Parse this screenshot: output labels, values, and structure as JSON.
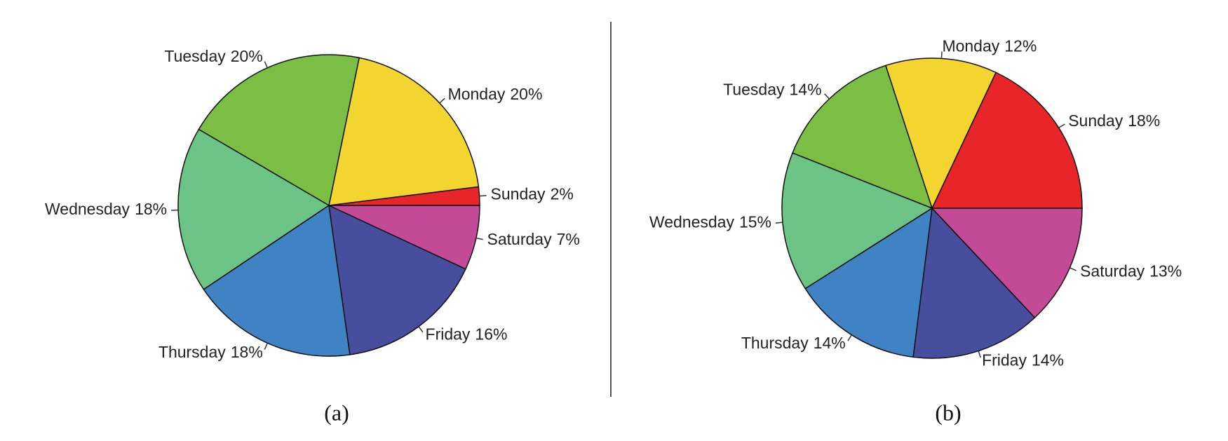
{
  "chart_data": [
    {
      "type": "pie",
      "caption": "(a)",
      "categories": [
        "Sunday",
        "Monday",
        "Tuesday",
        "Wednesday",
        "Thursday",
        "Friday",
        "Saturday"
      ],
      "values": [
        2,
        20,
        20,
        18,
        18,
        16,
        7
      ],
      "value_labels": [
        "2%",
        "20%",
        "20%",
        "18%",
        "18%",
        "16%",
        "7%"
      ],
      "colors": [
        "#e8262a",
        "#f2d62f",
        "#7abf43",
        "#6cc386",
        "#3f83c4",
        "#484e9e",
        "#c24a97"
      ]
    },
    {
      "type": "pie",
      "caption": "(b)",
      "categories": [
        "Sunday",
        "Monday",
        "Tuesday",
        "Wednesday",
        "Thursday",
        "Friday",
        "Saturday"
      ],
      "values": [
        18,
        12,
        14,
        15,
        14,
        14,
        13
      ],
      "value_labels": [
        "18%",
        "12%",
        "14%",
        "15%",
        "14%",
        "14%",
        "13%"
      ],
      "colors": [
        "#e8262a",
        "#f2d62f",
        "#7abf43",
        "#6cc386",
        "#3f83c4",
        "#484e9e",
        "#c24a97"
      ]
    }
  ]
}
